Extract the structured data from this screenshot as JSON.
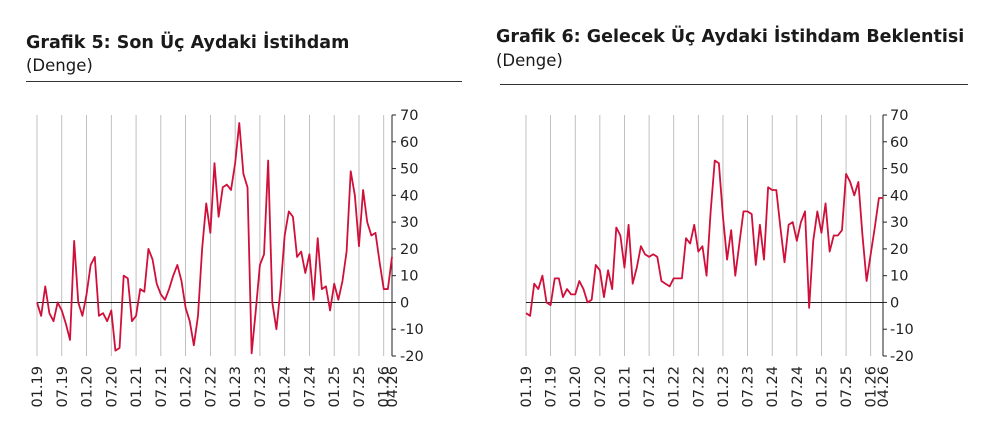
{
  "panels": [
    {
      "title": "Grafik 5: Son Üç Aydaki İstihdam",
      "subtitle": " (Denge)"
    },
    {
      "title": "Grafik 6: Gelecek Üç Aydaki İstihdam Beklentisi",
      "subtitle": "(Denge)"
    }
  ],
  "colors": {
    "line": "#d0103a",
    "grid": "#b0b0b0",
    "axis": "#222222"
  },
  "chart_data": [
    {
      "type": "line",
      "title": "Grafik 5: Son Üç Aydaki İstihdam",
      "subtitle": "(Denge)",
      "x_start": "01.19",
      "x_end": "04.26",
      "x_ticks": [
        "01.19",
        "07.19",
        "01.20",
        "07.20",
        "01.21",
        "07.21",
        "01.22",
        "07.22",
        "01.23",
        "07.23",
        "01.24",
        "07.24",
        "01.25",
        "07.25",
        "01.26",
        "04.26"
      ],
      "ylim": [
        -20,
        70
      ],
      "y_ticks": [
        -20,
        -10,
        0,
        10,
        20,
        30,
        40,
        50,
        60,
        70
      ],
      "grid": "vertical",
      "y_axis_side": "right",
      "series": [
        {
          "values": [
            0,
            -5,
            6,
            -4,
            -7,
            0,
            -3,
            -8,
            -14,
            23,
            0,
            -5,
            3,
            14,
            17,
            -5,
            -4,
            -7,
            -3,
            -18,
            -17,
            10,
            9,
            -7,
            -5,
            5,
            4,
            20,
            16,
            7,
            3,
            1,
            5,
            10,
            14,
            8,
            -2,
            -7,
            -16,
            -5,
            20,
            37,
            26,
            52,
            32,
            43,
            44,
            42,
            52,
            67,
            48,
            43,
            -19,
            -3,
            14,
            18,
            53,
            0,
            -10,
            5,
            25,
            34,
            32,
            17,
            19,
            11,
            18,
            1,
            24,
            5,
            6,
            -3,
            7,
            1,
            8,
            19,
            49,
            40,
            21,
            42,
            30,
            25,
            26,
            15,
            5,
            5,
            17
          ]
        }
      ]
    },
    {
      "type": "line",
      "title": "Grafik 6: Gelecek Üç Aydaki İstihdam Beklentisi",
      "subtitle": "(Denge)",
      "x_start": "01.19",
      "x_end": "04.26",
      "x_ticks": [
        "01.19",
        "07.19",
        "01.20",
        "07.20",
        "01.21",
        "07.21",
        "01.22",
        "07.22",
        "01.23",
        "07.23",
        "01.24",
        "07.24",
        "01.25",
        "07.25",
        "01.26",
        "04.26"
      ],
      "ylim": [
        -20,
        70
      ],
      "y_ticks": [
        -20,
        -10,
        0,
        10,
        20,
        30,
        40,
        50,
        60,
        70
      ],
      "grid": "vertical",
      "y_axis_side": "right",
      "series": [
        {
          "values": [
            -4,
            -5,
            7,
            5,
            10,
            0,
            -1,
            9,
            9,
            2,
            5,
            3,
            3,
            8,
            5,
            0,
            1,
            14,
            12,
            2,
            12,
            5,
            28,
            25,
            13,
            29,
            7,
            13,
            21,
            18,
            17,
            18,
            17,
            8,
            7,
            6,
            9,
            9,
            9,
            24,
            22,
            29,
            19,
            21,
            10,
            34,
            53,
            52,
            32,
            16,
            27,
            10,
            22,
            34,
            34,
            33,
            14,
            29,
            16,
            43,
            42,
            42,
            28,
            15,
            29,
            30,
            23,
            30,
            34,
            -2,
            23,
            34,
            26,
            37,
            19,
            25,
            25,
            27,
            48,
            45,
            40,
            45,
            25,
            8,
            18,
            28,
            39,
            39
          ]
        }
      ]
    }
  ]
}
